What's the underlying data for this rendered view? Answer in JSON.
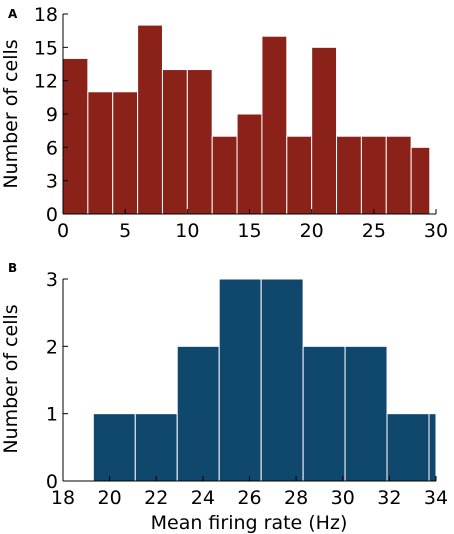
{
  "chart_data": [
    {
      "panel_label": "A",
      "type": "bar",
      "ylabel": "Number of cells",
      "xlabel": "",
      "xlim": [
        0,
        30
      ],
      "ylim": [
        0,
        18
      ],
      "xticks": [
        "0",
        "5",
        "10",
        "15",
        "20",
        "25",
        "30"
      ],
      "yticks": [
        "0",
        "3",
        "6",
        "9",
        "12",
        "15",
        "18"
      ],
      "grid": false,
      "color": "#8b2219",
      "bins": [
        {
          "x0": 0,
          "x1": 2,
          "value": 14
        },
        {
          "x0": 2,
          "x1": 4,
          "value": 11
        },
        {
          "x0": 4,
          "x1": 6,
          "value": 11
        },
        {
          "x0": 6,
          "x1": 8,
          "value": 17
        },
        {
          "x0": 8,
          "x1": 10,
          "value": 13
        },
        {
          "x0": 10,
          "x1": 12,
          "value": 13
        },
        {
          "x0": 12,
          "x1": 14,
          "value": 7
        },
        {
          "x0": 14,
          "x1": 16,
          "value": 9
        },
        {
          "x0": 16,
          "x1": 18,
          "value": 16
        },
        {
          "x0": 18,
          "x1": 20,
          "value": 7
        },
        {
          "x0": 20,
          "x1": 22,
          "value": 15
        },
        {
          "x0": 22,
          "x1": 24,
          "value": 7
        },
        {
          "x0": 24,
          "x1": 26,
          "value": 7
        },
        {
          "x0": 26,
          "x1": 28,
          "value": 7
        },
        {
          "x0": 28,
          "x1": 29.5,
          "value": 6
        }
      ]
    },
    {
      "panel_label": "B",
      "type": "bar",
      "ylabel": "Number of cells",
      "xlabel": "Mean firing rate (Hz)",
      "xlim": [
        18,
        34
      ],
      "ylim": [
        0,
        3
      ],
      "xticks": [
        "18",
        "20",
        "22",
        "24",
        "26",
        "28",
        "30",
        "32",
        "34"
      ],
      "yticks": [
        "0",
        "1",
        "2",
        "3"
      ],
      "grid": false,
      "color": "#10476d",
      "bins": [
        {
          "x0": 19.3,
          "x1": 21.1,
          "value": 1
        },
        {
          "x0": 21.1,
          "x1": 22.9,
          "value": 1
        },
        {
          "x0": 22.9,
          "x1": 24.7,
          "value": 2
        },
        {
          "x0": 24.7,
          "x1": 26.5,
          "value": 3
        },
        {
          "x0": 26.5,
          "x1": 28.3,
          "value": 3
        },
        {
          "x0": 28.3,
          "x1": 30.1,
          "value": 2
        },
        {
          "x0": 30.1,
          "x1": 31.9,
          "value": 2
        },
        {
          "x0": 31.9,
          "x1": 33.7,
          "value": 1
        },
        {
          "x0": 33.7,
          "x1": 35.5,
          "value": 1
        }
      ]
    }
  ]
}
